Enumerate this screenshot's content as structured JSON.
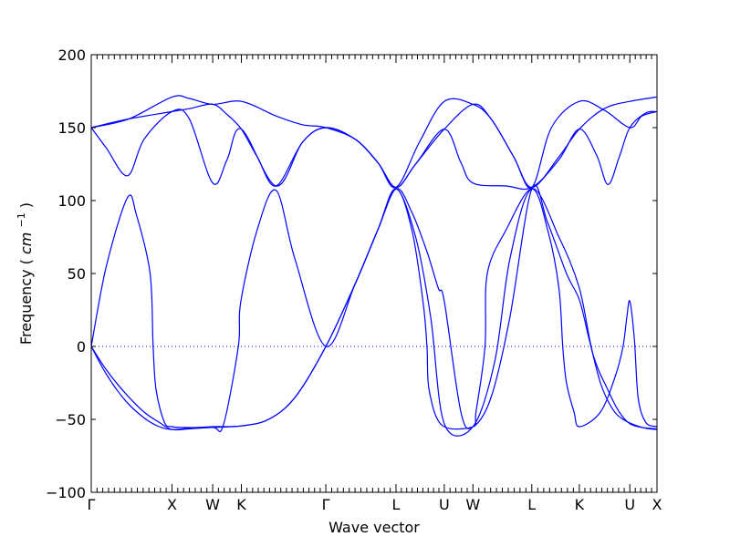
{
  "chart_data": {
    "type": "line",
    "title": "",
    "xlabel": "Wave vector",
    "ylabel": "Frequency",
    "ylabel_unit": "cm",
    "ylabel_unit_exponent": "−1",
    "ylim": [
      -100,
      200
    ],
    "yticks": [
      -100,
      -50,
      0,
      50,
      100,
      150,
      200
    ],
    "grid": false,
    "legend": "none",
    "line_color": "#0000ff",
    "zero_line": {
      "y": 0,
      "style": "dotted"
    },
    "x_range": [
      0,
      7.5
    ],
    "high_symmetry_points": [
      {
        "label": "Γ",
        "x": 0.0
      },
      {
        "label": "X",
        "x": 1.07
      },
      {
        "label": "W",
        "x": 1.61
      },
      {
        "label": "K",
        "x": 1.99
      },
      {
        "label": "Γ",
        "x": 3.11
      },
      {
        "label": "L",
        "x": 4.04
      },
      {
        "label": "U",
        "x": 4.68
      },
      {
        "label": "W",
        "x": 5.06
      },
      {
        "label": "L",
        "x": 5.84
      },
      {
        "label": "K",
        "x": 6.47
      },
      {
        "label": "U",
        "x": 7.14
      },
      {
        "label": "X",
        "x": 7.5
      }
    ],
    "series": [
      {
        "values": [
          [
            0,
            0
          ],
          [
            0.2,
            -16
          ],
          [
            0.45,
            -32
          ],
          [
            0.7,
            -45
          ],
          [
            0.9,
            -52
          ],
          [
            1.07,
            -57
          ],
          [
            1.3,
            -56.5
          ],
          [
            1.61,
            -55.5
          ],
          [
            1.99,
            -54.5
          ],
          [
            2.35,
            -50
          ],
          [
            2.7,
            -35
          ],
          [
            3.11,
            0
          ],
          [
            3.5,
            43
          ],
          [
            3.8,
            80
          ],
          [
            4.04,
            108
          ],
          [
            4.25,
            92
          ],
          [
            4.45,
            65
          ],
          [
            4.6,
            40
          ],
          [
            4.68,
            31
          ],
          [
            4.9,
            -45
          ],
          [
            5.06,
            -55
          ],
          [
            5.3,
            -35
          ],
          [
            5.55,
            20
          ],
          [
            5.84,
            108
          ],
          [
            6.05,
            85
          ],
          [
            6.3,
            50
          ],
          [
            6.47,
            32
          ],
          [
            6.6,
            5
          ],
          [
            6.75,
            -25
          ],
          [
            6.9,
            -42
          ],
          [
            7.05,
            -50
          ],
          [
            7.3,
            -55.5
          ],
          [
            7.5,
            -57
          ]
        ]
      },
      {
        "values": [
          [
            0,
            0
          ],
          [
            0.2,
            -19
          ],
          [
            0.45,
            -37
          ],
          [
            0.7,
            -49
          ],
          [
            0.9,
            -55
          ],
          [
            1.07,
            -57
          ],
          [
            1.3,
            -56
          ],
          [
            1.61,
            -55
          ],
          [
            1.99,
            -54.5
          ],
          [
            2.35,
            -50
          ],
          [
            2.7,
            -35
          ],
          [
            3.11,
            0
          ],
          [
            3.5,
            43
          ],
          [
            3.8,
            80
          ],
          [
            4.04,
            108
          ],
          [
            4.3,
            75
          ],
          [
            4.5,
            20
          ],
          [
            4.68,
            -53
          ],
          [
            5.06,
            -55
          ],
          [
            5.35,
            -10
          ],
          [
            5.55,
            60
          ],
          [
            5.84,
            108
          ],
          [
            6.2,
            75
          ],
          [
            6.47,
            40
          ],
          [
            6.65,
            -5
          ],
          [
            6.85,
            -30
          ],
          [
            7.0,
            -45
          ],
          [
            7.14,
            -53
          ],
          [
            7.3,
            -55.5
          ],
          [
            7.5,
            -56.5
          ]
        ]
      },
      {
        "values": [
          [
            0,
            0
          ],
          [
            0.2,
            55
          ],
          [
            0.48,
            102
          ],
          [
            0.6,
            90
          ],
          [
            0.78,
            50
          ],
          [
            0.82,
            0
          ],
          [
            0.86,
            -30
          ],
          [
            0.97,
            -52
          ],
          [
            1.07,
            -55
          ],
          [
            1.2,
            -55.5
          ],
          [
            1.61,
            -55.5
          ],
          [
            1.75,
            -54
          ],
          [
            1.95,
            0
          ],
          [
            1.98,
            30
          ],
          [
            2.2,
            80
          ],
          [
            2.45,
            107
          ],
          [
            2.7,
            60
          ],
          [
            3.11,
            0
          ],
          [
            3.5,
            43
          ],
          [
            3.8,
            80
          ],
          [
            4.04,
            108
          ],
          [
            4.25,
            80
          ],
          [
            4.4,
            30
          ],
          [
            4.45,
            0
          ],
          [
            4.48,
            -30
          ],
          [
            4.65,
            -54
          ],
          [
            5.06,
            -55
          ],
          [
            5.1,
            -45
          ],
          [
            5.22,
            0
          ],
          [
            5.25,
            50
          ],
          [
            5.5,
            80
          ],
          [
            5.84,
            108
          ],
          [
            6.05,
            80
          ],
          [
            6.2,
            40
          ],
          [
            6.25,
            0
          ],
          [
            6.3,
            -25
          ],
          [
            6.4,
            -45
          ],
          [
            6.47,
            -55
          ],
          [
            6.75,
            -45
          ],
          [
            6.95,
            -20
          ],
          [
            7.05,
            0
          ],
          [
            7.1,
            20
          ],
          [
            7.14,
            31
          ],
          [
            7.2,
            5
          ],
          [
            7.25,
            -35
          ],
          [
            7.35,
            -52
          ],
          [
            7.5,
            -55
          ]
        ]
      },
      {
        "values": [
          [
            0,
            150
          ],
          [
            0.2,
            136
          ],
          [
            0.48,
            117
          ],
          [
            0.7,
            142
          ],
          [
            1.07,
            161
          ],
          [
            1.3,
            156
          ],
          [
            1.61,
            112
          ],
          [
            1.8,
            128
          ],
          [
            1.99,
            149
          ],
          [
            2.45,
            110
          ],
          [
            2.8,
            140
          ],
          [
            3.11,
            150
          ],
          [
            3.5,
            142
          ],
          [
            3.8,
            126
          ],
          [
            4.04,
            109
          ],
          [
            4.3,
            125
          ],
          [
            4.68,
            149
          ],
          [
            4.9,
            126
          ],
          [
            5.06,
            112
          ],
          [
            5.5,
            110
          ],
          [
            5.84,
            109
          ],
          [
            6.2,
            128
          ],
          [
            6.47,
            149
          ],
          [
            6.7,
            131
          ],
          [
            6.85,
            111
          ],
          [
            7.0,
            130
          ],
          [
            7.14,
            150
          ],
          [
            7.35,
            160
          ],
          [
            7.5,
            161
          ]
        ]
      },
      {
        "values": [
          [
            0,
            150
          ],
          [
            0.5,
            156
          ],
          [
            1.07,
            161
          ],
          [
            1.3,
            163
          ],
          [
            1.61,
            166
          ],
          [
            1.8,
            159
          ],
          [
            1.99,
            149
          ],
          [
            2.2,
            130
          ],
          [
            2.45,
            110
          ],
          [
            2.8,
            140
          ],
          [
            3.11,
            150
          ],
          [
            3.5,
            142
          ],
          [
            3.8,
            126
          ],
          [
            4.04,
            109
          ],
          [
            4.3,
            125
          ],
          [
            4.68,
            149
          ],
          [
            5.06,
            166
          ],
          [
            5.3,
            156
          ],
          [
            5.6,
            130
          ],
          [
            5.84,
            109
          ],
          [
            6.2,
            130
          ],
          [
            6.47,
            149
          ],
          [
            6.8,
            163
          ],
          [
            7.14,
            168
          ],
          [
            7.5,
            171
          ]
        ]
      },
      {
        "values": [
          [
            0,
            150
          ],
          [
            0.5,
            156
          ],
          [
            1.07,
            171
          ],
          [
            1.3,
            170
          ],
          [
            1.61,
            166
          ],
          [
            1.99,
            168
          ],
          [
            2.45,
            158
          ],
          [
            2.8,
            152
          ],
          [
            3.11,
            150
          ],
          [
            3.5,
            142
          ],
          [
            3.8,
            126
          ],
          [
            4.04,
            109
          ],
          [
            4.35,
            140
          ],
          [
            4.68,
            168
          ],
          [
            5.06,
            166
          ],
          [
            5.3,
            156
          ],
          [
            5.6,
            130
          ],
          [
            5.84,
            109
          ],
          [
            6.1,
            150
          ],
          [
            6.47,
            168
          ],
          [
            6.8,
            162
          ],
          [
            7.14,
            150
          ],
          [
            7.3,
            158
          ],
          [
            7.5,
            161
          ]
        ]
      }
    ]
  }
}
